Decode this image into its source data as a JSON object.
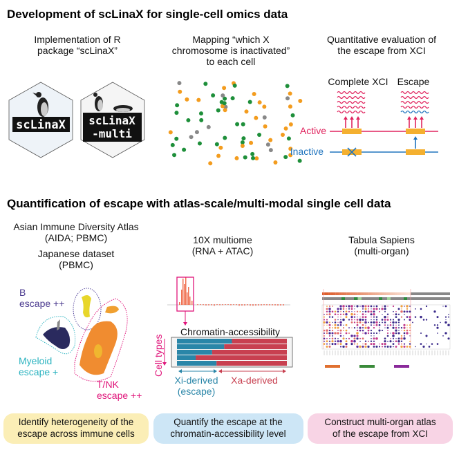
{
  "section1": {
    "title": "Development of scLinaX for single-cell omics data",
    "col1": [
      "Implementation of R",
      "package “scLinaX”"
    ],
    "col2": [
      "Mapping “which X",
      "chromosome is inactivated”",
      "to each cell"
    ],
    "col3": [
      "Quantitative evaluation of",
      "the escape from XCI"
    ],
    "logo1": "scLinaX",
    "logo2": [
      "scLinaX",
      "-multi"
    ],
    "xci": {
      "complete": "Complete XCI",
      "escape": "Escape",
      "active": "Active",
      "inactive": "Inactive"
    }
  },
  "section2": {
    "title": "Quantification of escape with atlas-scale/multi-modal single cell data",
    "col1a": [
      "Asian Immune Diversity Atlas",
      "(AIDA; PBMC)"
    ],
    "col1b": [
      "Japanese dataset",
      "(PBMC)"
    ],
    "col2": [
      "10X multiome",
      "(RNA + ATAC)"
    ],
    "col3": [
      "Tabula Sapiens",
      "(multi-organ)"
    ],
    "umap": {
      "b": [
        "B",
        "escape ++"
      ],
      "myeloid": [
        "Myeloid",
        "escape +"
      ],
      "tnk": [
        "T/NK",
        "escape ++"
      ]
    },
    "atac": {
      "title": "Chromatin-accessibility",
      "cell_types": "Cell types",
      "xi": [
        "Xi-derived",
        "(escape)"
      ],
      "xa": "Xa-derived",
      "xi_fractions": [
        0.5,
        0.43,
        0.32,
        0.17,
        0.36
      ]
    }
  },
  "boxes": [
    {
      "lines": [
        "Identify heterogeneity of the",
        "escape across immune cells"
      ],
      "color": "#fbeeb6"
    },
    {
      "lines": [
        "Quantify the escape at the",
        "chromatin-accessibility level"
      ],
      "color": "#cde6f6"
    },
    {
      "lines": [
        "Construct multi-organ atlas",
        "of the escape from XCI"
      ],
      "color": "#f8d4e5"
    }
  ],
  "colors": {
    "active": "#e0245e",
    "inactive": "#1e73be",
    "gene": "#f4b030",
    "xi": "#2a86a8",
    "xa": "#c84050"
  }
}
